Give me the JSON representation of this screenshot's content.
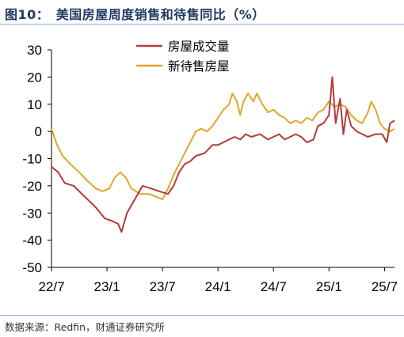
{
  "figure": {
    "title": "图10：　美国房屋周度销售和待售同比（%）",
    "source": "数据来源：Redfin，财通证券研究所"
  },
  "chart_data": {
    "type": "line",
    "title": "美国房屋周度销售和待售同比（%）",
    "xlabel": "",
    "ylabel": "",
    "ylim": [
      -50,
      30
    ],
    "yticks": [
      "30",
      "20",
      "10",
      "0",
      "-10",
      "-20",
      "-30",
      "-40",
      "-50"
    ],
    "xticks": [
      "22/7",
      "23/1",
      "23/7",
      "24/1",
      "24/7",
      "25/1",
      "25/7"
    ],
    "legend_position": "top-center",
    "grid": false,
    "series": [
      {
        "name": "房屋成交量",
        "color": "#b5393b",
        "points": [
          [
            2022.5,
            -13
          ],
          [
            2022.56,
            -15
          ],
          [
            2022.62,
            -19
          ],
          [
            2022.7,
            -20
          ],
          [
            2022.8,
            -24
          ],
          [
            2022.9,
            -28
          ],
          [
            2022.98,
            -32
          ],
          [
            2023.05,
            -33
          ],
          [
            2023.1,
            -34
          ],
          [
            2023.13,
            -37
          ],
          [
            2023.18,
            -30
          ],
          [
            2023.25,
            -25
          ],
          [
            2023.32,
            -20
          ],
          [
            2023.4,
            -21
          ],
          [
            2023.47,
            -22
          ],
          [
            2023.55,
            -23
          ],
          [
            2023.6,
            -20
          ],
          [
            2023.65,
            -15
          ],
          [
            2023.7,
            -12
          ],
          [
            2023.75,
            -11
          ],
          [
            2023.8,
            -9
          ],
          [
            2023.88,
            -8
          ],
          [
            2023.95,
            -5
          ],
          [
            2024.0,
            -5
          ],
          [
            2024.05,
            -4
          ],
          [
            2024.1,
            -3
          ],
          [
            2024.15,
            -2
          ],
          [
            2024.2,
            -3
          ],
          [
            2024.25,
            -1
          ],
          [
            2024.3,
            -2
          ],
          [
            2024.38,
            -1
          ],
          [
            2024.45,
            -3
          ],
          [
            2024.5,
            -2
          ],
          [
            2024.55,
            -1
          ],
          [
            2024.6,
            -3
          ],
          [
            2024.65,
            -2
          ],
          [
            2024.7,
            -1
          ],
          [
            2024.75,
            -2
          ],
          [
            2024.8,
            -4
          ],
          [
            2024.86,
            -3
          ],
          [
            2024.9,
            2
          ],
          [
            2024.95,
            3
          ],
          [
            2025.0,
            6
          ],
          [
            2025.03,
            20
          ],
          [
            2025.06,
            3
          ],
          [
            2025.1,
            12
          ],
          [
            2025.13,
            -1
          ],
          [
            2025.16,
            8
          ],
          [
            2025.2,
            2
          ],
          [
            2025.25,
            0
          ],
          [
            2025.3,
            -1
          ],
          [
            2025.35,
            -2
          ],
          [
            2025.42,
            -1
          ],
          [
            2025.48,
            -1
          ],
          [
            2025.52,
            -4
          ],
          [
            2025.55,
            3
          ],
          [
            2025.59,
            4
          ]
        ]
      },
      {
        "name": "新待售房屋",
        "color": "#e3a629",
        "points": [
          [
            2022.5,
            1
          ],
          [
            2022.55,
            -5
          ],
          [
            2022.6,
            -9
          ],
          [
            2022.67,
            -12
          ],
          [
            2022.75,
            -15
          ],
          [
            2022.82,
            -18
          ],
          [
            2022.9,
            -21
          ],
          [
            2022.96,
            -22
          ],
          [
            2023.02,
            -21
          ],
          [
            2023.07,
            -17
          ],
          [
            2023.12,
            -15
          ],
          [
            2023.17,
            -17
          ],
          [
            2023.22,
            -21
          ],
          [
            2023.3,
            -23
          ],
          [
            2023.38,
            -23
          ],
          [
            2023.44,
            -24
          ],
          [
            2023.5,
            -25
          ],
          [
            2023.55,
            -21
          ],
          [
            2023.6,
            -16
          ],
          [
            2023.65,
            -12
          ],
          [
            2023.7,
            -8
          ],
          [
            2023.75,
            -4
          ],
          [
            2023.8,
            0
          ],
          [
            2023.85,
            1
          ],
          [
            2023.9,
            0
          ],
          [
            2023.95,
            2
          ],
          [
            2024.0,
            5
          ],
          [
            2024.05,
            8
          ],
          [
            2024.1,
            10
          ],
          [
            2024.13,
            14
          ],
          [
            2024.17,
            11
          ],
          [
            2024.2,
            6
          ],
          [
            2024.23,
            11
          ],
          [
            2024.27,
            14
          ],
          [
            2024.32,
            11
          ],
          [
            2024.35,
            14
          ],
          [
            2024.4,
            10
          ],
          [
            2024.45,
            7
          ],
          [
            2024.5,
            8
          ],
          [
            2024.55,
            6
          ],
          [
            2024.6,
            5
          ],
          [
            2024.65,
            3
          ],
          [
            2024.7,
            4
          ],
          [
            2024.75,
            3
          ],
          [
            2024.8,
            5
          ],
          [
            2024.85,
            4
          ],
          [
            2024.9,
            7
          ],
          [
            2024.95,
            8
          ],
          [
            2025.0,
            11
          ],
          [
            2025.05,
            9
          ],
          [
            2025.1,
            10
          ],
          [
            2025.15,
            9
          ],
          [
            2025.2,
            6
          ],
          [
            2025.25,
            4
          ],
          [
            2025.3,
            3
          ],
          [
            2025.35,
            7
          ],
          [
            2025.38,
            11
          ],
          [
            2025.42,
            8
          ],
          [
            2025.46,
            3
          ],
          [
            2025.5,
            1
          ],
          [
            2025.55,
            0
          ],
          [
            2025.59,
            1
          ]
        ]
      }
    ]
  }
}
